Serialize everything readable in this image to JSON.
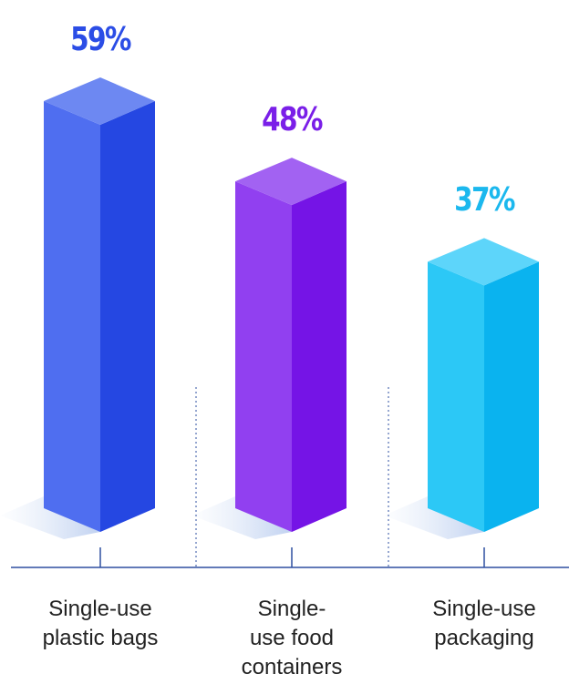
{
  "chart_data": {
    "type": "bar",
    "style": "3d-isometric",
    "categories": [
      "Single-use plastic bags",
      "Single-use food containers",
      "Single-use packaging"
    ],
    "category_lines": [
      [
        "Single-use",
        "plastic bags"
      ],
      [
        "Single-",
        "use food",
        "containers"
      ],
      [
        "Single-use",
        "packaging"
      ]
    ],
    "values": [
      59,
      48,
      37
    ],
    "value_labels": [
      "59%",
      "48%",
      "37%"
    ],
    "unit": "%",
    "title": "",
    "xlabel": "",
    "ylabel": "",
    "ylim": [
      0,
      59
    ],
    "grid": false,
    "legend": "none",
    "colors": [
      {
        "front": "#4f6ef0",
        "side": "#2547e2",
        "top": "#6d88f2",
        "label": "#2b4de6"
      },
      {
        "front": "#9140f0",
        "side": "#7514e6",
        "top": "#a262f2",
        "label": "#7a1fe8"
      },
      {
        "front": "#2cc8f6",
        "side": "#0ab3ef",
        "top": "#5dd5fa",
        "label": "#1bb8ee"
      }
    ],
    "axis_color": "#2e4fa0"
  }
}
